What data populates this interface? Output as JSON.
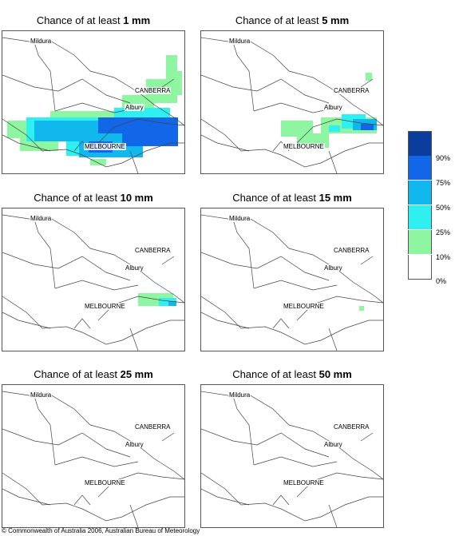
{
  "panels": [
    {
      "prefix": "Chance of at least ",
      "amount": "1 mm"
    },
    {
      "prefix": "Chance of at least ",
      "amount": "5 mm"
    },
    {
      "prefix": "Chance of at least ",
      "amount": "10 mm"
    },
    {
      "prefix": "Chance of at least ",
      "amount": "15 mm"
    },
    {
      "prefix": "Chance of at least ",
      "amount": "25 mm"
    },
    {
      "prefix": "Chance of at least ",
      "amount": "50 mm"
    }
  ],
  "places": {
    "mildura": "Mildura",
    "canberra": "CANBERRA",
    "albury": "Albury",
    "melbourne": "MELBOURNE"
  },
  "legend": {
    "ticks": [
      "90%",
      "75%",
      "50%",
      "25%",
      "10%",
      "0%"
    ],
    "colors": [
      "#0a3d9c",
      "#1167e8",
      "#10b8ee",
      "#2ef0f0",
      "#8ef5a0",
      "#ffffff"
    ]
  },
  "footer": "© Commonwealth of Australia 2006, Australian Bureau of Meteorology"
}
